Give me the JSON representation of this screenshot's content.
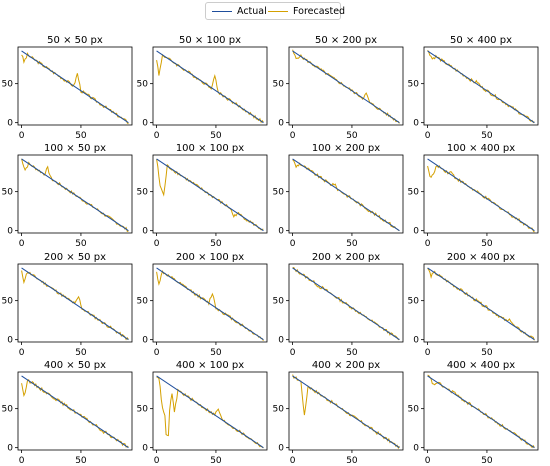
{
  "legend": {
    "actual": "Actual",
    "forecasted": "Forecasted"
  },
  "colors": {
    "actual": "#1f4e9c",
    "forecasted": "#d4a000",
    "axis": "#000000",
    "background": "#ffffff"
  },
  "chart_data": {
    "type": "line",
    "layout": "4x4 small multiples",
    "legend_position": "top-center",
    "grid": false,
    "xlim": [
      -3,
      93
    ],
    "ylim": [
      -3,
      97
    ],
    "xticks": [
      0,
      50
    ],
    "yticks": [
      0,
      50
    ],
    "actual": {
      "x": [
        0,
        90
      ],
      "y": [
        92,
        0
      ]
    },
    "panels": [
      {
        "title": "50 × 50 px",
        "spikes": [
          [
            2,
            78
          ],
          [
            47,
            63
          ]
        ]
      },
      {
        "title": "50 × 100 px",
        "spikes": [
          [
            2,
            60
          ],
          [
            49,
            60
          ]
        ]
      },
      {
        "title": "50 × 200 px",
        "spikes": [
          [
            3,
            82
          ],
          [
            62,
            37
          ]
        ]
      },
      {
        "title": "50 × 400 px",
        "spikes": [
          [
            4,
            82
          ],
          [
            42,
            52
          ]
        ]
      },
      {
        "title": "100 × 50 px",
        "spikes": [
          [
            3,
            78
          ],
          [
            10,
            82
          ],
          [
            22,
            80
          ]
        ]
      },
      {
        "title": "100 × 100 px",
        "spikes": [
          [
            3,
            58
          ],
          [
            6,
            45
          ],
          [
            65,
            18
          ]
        ]
      },
      {
        "title": "100 × 200 px",
        "spikes": [
          [
            3,
            82
          ],
          [
            35,
            60
          ],
          [
            80,
            12
          ]
        ]
      },
      {
        "title": "100 × 400 px",
        "spikes": [
          [
            2,
            68
          ],
          [
            5,
            72
          ],
          [
            20,
            75
          ]
        ]
      },
      {
        "title": "200 × 50 px",
        "spikes": [
          [
            2,
            75
          ],
          [
            48,
            55
          ]
        ]
      },
      {
        "title": "200 × 100 px",
        "spikes": [
          [
            2,
            72
          ],
          [
            47,
            60
          ]
        ]
      },
      {
        "title": "200 × 200 px",
        "spikes": [
          [
            22,
            68
          ],
          [
            60,
            30
          ]
        ]
      },
      {
        "title": "200 × 400 px",
        "spikes": [
          [
            3,
            82
          ],
          [
            70,
            25
          ]
        ]
      },
      {
        "title": "400 × 50 px",
        "spikes": [
          [
            2,
            65
          ],
          [
            68,
            20
          ]
        ]
      },
      {
        "title": "400 × 100 px",
        "spikes": [
          [
            5,
            50
          ],
          [
            8,
            35
          ],
          [
            10,
            30
          ],
          [
            15,
            45
          ],
          [
            52,
            50
          ]
        ]
      },
      {
        "title": "400 × 200 px",
        "spikes": [
          [
            10,
            40
          ],
          [
            70,
            20
          ]
        ]
      },
      {
        "title": "400 × 400 px",
        "spikes": [
          [
            5,
            80
          ],
          [
            22,
            72
          ],
          [
            70,
            20
          ]
        ]
      }
    ]
  }
}
